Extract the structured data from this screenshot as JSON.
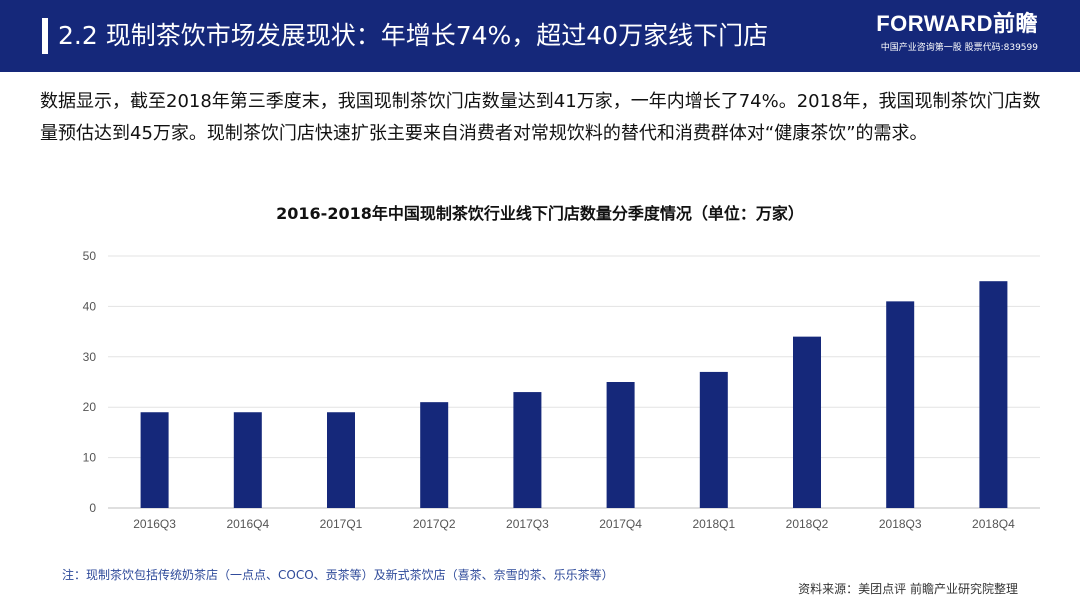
{
  "header": {
    "title": "2.2 现制茶饮市场发展现状：年增长74%，超过40万家线下门店",
    "brand_name": "FORWARD前瞻",
    "brand_sub": "中国产业咨询第一股 股票代码:839599"
  },
  "intro_text": "数据显示，截至2018年第三季度末，我国现制茶饮门店数量达到41万家，一年内增长了74%。2018年，我国现制茶饮门店数量预估达到45万家。现制茶饮门店快速扩张主要来自消费者对常规饮料的替代和消费群体对“健康茶饮”的需求。",
  "chart_data": {
    "type": "bar",
    "title": "2016-2018年中国现制茶饮行业线下门店数量分季度情况（单位：万家）",
    "categories": [
      "2016Q3",
      "2016Q4",
      "2017Q1",
      "2017Q2",
      "2017Q3",
      "2017Q4",
      "2018Q1",
      "2018Q2",
      "2018Q3",
      "2018Q4"
    ],
    "values": [
      19,
      19,
      19,
      21,
      23,
      25,
      27,
      34,
      41,
      45
    ],
    "ylim": [
      0,
      50
    ],
    "yticks": [
      0,
      10,
      20,
      30,
      40,
      50
    ],
    "grid": true,
    "bar_color": "#15287a"
  },
  "note": "注：现制茶饮包括传统奶茶店（一点点、COCO、贡茶等）及新式茶饮店（喜茶、奈雪的茶、乐乐茶等）",
  "source": "资料来源：美团点评 前瞻产业研究院整理"
}
